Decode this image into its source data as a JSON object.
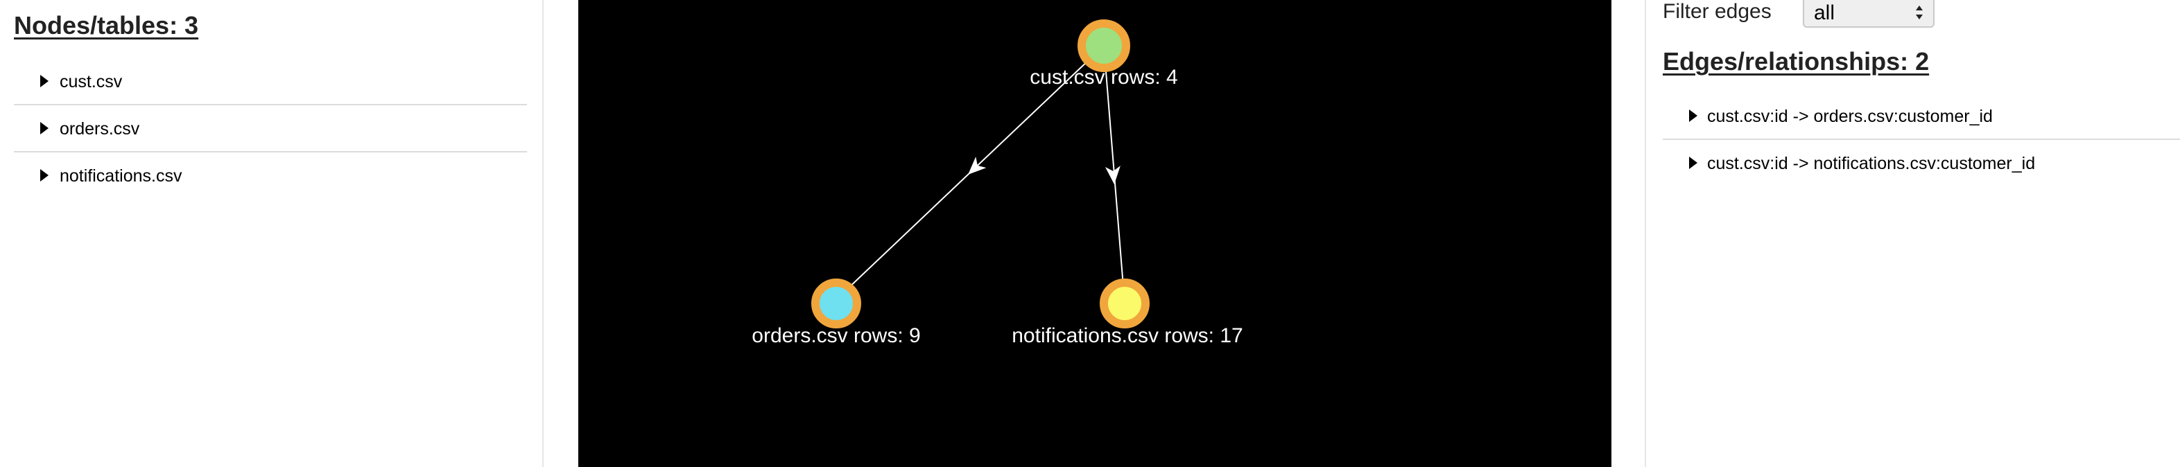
{
  "nodes_panel": {
    "title": "Nodes/tables: 3",
    "items": [
      {
        "label": "cust.csv"
      },
      {
        "label": "orders.csv"
      },
      {
        "label": "notifications.csv"
      }
    ]
  },
  "graph": {
    "background": "#000000",
    "node_ring_color": "#f0a63c",
    "edge_color": "#ffffff",
    "label_color": "#ffffff",
    "nodes": [
      {
        "id": "cust",
        "label": "cust.csv rows: 4",
        "fill": "#9ee07f"
      },
      {
        "id": "orders",
        "label": "orders.csv rows: 9",
        "fill": "#6fe0f0"
      },
      {
        "id": "notifications",
        "label": "notifications.csv rows: 17",
        "fill": "#fbfa6a"
      }
    ],
    "edges": [
      {
        "from": "cust",
        "to": "orders"
      },
      {
        "from": "cust",
        "to": "notifications"
      }
    ]
  },
  "edges_panel": {
    "filter_label": "Filter edges",
    "filter_value": "all",
    "title": "Edges/relationships: 2",
    "items": [
      {
        "label": "cust.csv:id -> orders.csv:customer_id"
      },
      {
        "label": "cust.csv:id -> notifications.csv:customer_id"
      }
    ]
  }
}
